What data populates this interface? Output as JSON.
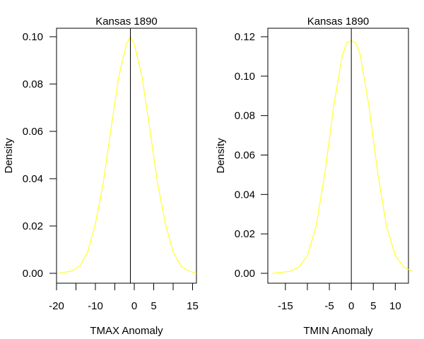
{
  "chart_data": [
    {
      "type": "line",
      "title": "Kansas 1890",
      "xlabel": "TMAX Anomaly",
      "ylabel": "Density",
      "xlim": [
        -20,
        16
      ],
      "ylim": [
        0.0,
        0.1
      ],
      "x_ticks": [
        -20,
        -15,
        -10,
        -5,
        0,
        5,
        10,
        15
      ],
      "x_tick_labels": [
        "-20",
        "",
        "-10",
        "",
        "0",
        "5",
        "",
        "15"
      ],
      "y_ticks": [
        0.0,
        0.02,
        0.04,
        0.06,
        0.08,
        0.1
      ],
      "y_tick_labels": [
        "0.00",
        "0.02",
        "0.04",
        "0.06",
        "0.08",
        "0.10"
      ],
      "grid": false,
      "series": [
        {
          "curve_color": "#ffff00",
          "x": [
            -19.5,
            -16,
            -14,
            -12,
            -10,
            -8,
            -6,
            -4,
            -2,
            -1,
            0,
            2,
            4,
            6,
            8,
            10,
            12,
            14,
            16
          ],
          "y": [
            0.0,
            0.001,
            0.003,
            0.009,
            0.021,
            0.038,
            0.061,
            0.083,
            0.097,
            0.1,
            0.097,
            0.083,
            0.061,
            0.038,
            0.021,
            0.009,
            0.003,
            0.001,
            0.0
          ]
        }
      ],
      "vline_x": -1,
      "vline_color": "#000000"
    },
    {
      "type": "line",
      "title": "Kansas 1890",
      "xlabel": "TMIN Anomaly",
      "ylabel": "Density",
      "xlim": [
        -19,
        13
      ],
      "ylim": [
        0.0,
        0.12
      ],
      "x_ticks": [
        -15,
        -10,
        -5,
        0,
        5,
        10
      ],
      "x_tick_labels": [
        "-15",
        "",
        "-5",
        "0",
        "5",
        "10"
      ],
      "y_ticks": [
        0.0,
        0.02,
        0.04,
        0.06,
        0.08,
        0.1,
        0.12
      ],
      "y_tick_labels": [
        "0.00",
        "0.02",
        "0.04",
        "0.06",
        "0.08",
        "0.10",
        "0.12"
      ],
      "grid": false,
      "series": [
        {
          "curve_color": "#ffff00",
          "x": [
            -18,
            -14,
            -12,
            -10,
            -8,
            -6,
            -4,
            -2,
            -1,
            0,
            1,
            2,
            4,
            6,
            8,
            10,
            12,
            14
          ],
          "y": [
            0.0,
            0.001,
            0.003,
            0.009,
            0.024,
            0.051,
            0.085,
            0.111,
            0.117,
            0.118,
            0.117,
            0.111,
            0.085,
            0.051,
            0.024,
            0.009,
            0.003,
            0.001
          ]
        }
      ],
      "vline_x": 0,
      "vline_color": "#000000"
    }
  ]
}
